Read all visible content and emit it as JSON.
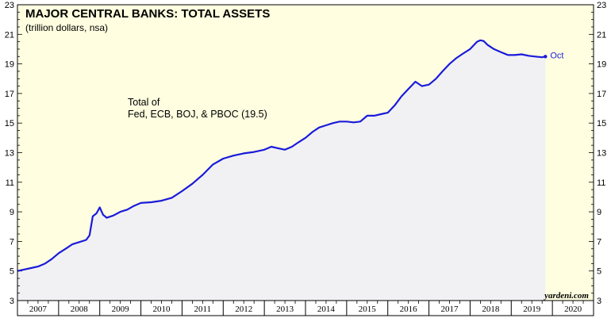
{
  "chart_data": {
    "type": "line",
    "title": "MAJOR CENTRAL BANKS: TOTAL ASSETS",
    "subtitle": "(trillion dollars, nsa)",
    "annotation_lines": [
      "Total of",
      "Fed, ECB, BOJ, & PBOC (19.5)"
    ],
    "end_label": "Oct",
    "credit": "yardeni.com",
    "xlabel": "",
    "ylabel": "",
    "xlim": [
      2007,
      2021
    ],
    "ylim": [
      3,
      23
    ],
    "y_ticks": [
      3,
      5,
      7,
      9,
      11,
      13,
      15,
      17,
      19,
      21,
      23
    ],
    "x_tick_labels": [
      "2007",
      "2008",
      "2009",
      "2010",
      "2011",
      "2012",
      "2013",
      "2014",
      "2015",
      "2016",
      "2017",
      "2018",
      "2019",
      "2020"
    ],
    "x_tick_positions": [
      2007.5,
      2008.5,
      2009.5,
      2010.5,
      2011.5,
      2012.5,
      2013.5,
      2014.5,
      2015.5,
      2016.5,
      2017.5,
      2018.5,
      2019.5,
      2020.5
    ],
    "grid": false,
    "background_color": "#fffee0",
    "fill_color": "#f1f1f4",
    "series": [
      {
        "color": "#1a1adb",
        "points": [
          [
            2007.0,
            5.0
          ],
          [
            2007.17,
            5.1
          ],
          [
            2007.33,
            5.2
          ],
          [
            2007.5,
            5.3
          ],
          [
            2007.67,
            5.5
          ],
          [
            2007.83,
            5.8
          ],
          [
            2008.0,
            6.2
          ],
          [
            2008.17,
            6.5
          ],
          [
            2008.33,
            6.8
          ],
          [
            2008.5,
            6.95
          ],
          [
            2008.67,
            7.1
          ],
          [
            2008.75,
            7.4
          ],
          [
            2008.83,
            8.7
          ],
          [
            2008.92,
            8.9
          ],
          [
            2009.0,
            9.3
          ],
          [
            2009.08,
            8.8
          ],
          [
            2009.17,
            8.6
          ],
          [
            2009.33,
            8.75
          ],
          [
            2009.5,
            9.0
          ],
          [
            2009.67,
            9.15
          ],
          [
            2009.83,
            9.4
          ],
          [
            2010.0,
            9.6
          ],
          [
            2010.25,
            9.65
          ],
          [
            2010.5,
            9.75
          ],
          [
            2010.75,
            9.95
          ],
          [
            2011.0,
            10.4
          ],
          [
            2011.25,
            10.9
          ],
          [
            2011.5,
            11.5
          ],
          [
            2011.75,
            12.2
          ],
          [
            2012.0,
            12.6
          ],
          [
            2012.25,
            12.8
          ],
          [
            2012.5,
            12.95
          ],
          [
            2012.75,
            13.05
          ],
          [
            2013.0,
            13.2
          ],
          [
            2013.17,
            13.4
          ],
          [
            2013.33,
            13.3
          ],
          [
            2013.5,
            13.2
          ],
          [
            2013.67,
            13.4
          ],
          [
            2013.83,
            13.7
          ],
          [
            2014.0,
            14.0
          ],
          [
            2014.17,
            14.4
          ],
          [
            2014.33,
            14.7
          ],
          [
            2014.5,
            14.85
          ],
          [
            2014.67,
            15.0
          ],
          [
            2014.83,
            15.1
          ],
          [
            2015.0,
            15.1
          ],
          [
            2015.17,
            15.05
          ],
          [
            2015.33,
            15.1
          ],
          [
            2015.5,
            15.5
          ],
          [
            2015.67,
            15.5
          ],
          [
            2015.83,
            15.6
          ],
          [
            2016.0,
            15.7
          ],
          [
            2016.17,
            16.2
          ],
          [
            2016.33,
            16.8
          ],
          [
            2016.5,
            17.3
          ],
          [
            2016.67,
            17.8
          ],
          [
            2016.83,
            17.5
          ],
          [
            2017.0,
            17.6
          ],
          [
            2017.17,
            18.0
          ],
          [
            2017.33,
            18.5
          ],
          [
            2017.5,
            19.0
          ],
          [
            2017.67,
            19.4
          ],
          [
            2017.83,
            19.7
          ],
          [
            2018.0,
            20.0
          ],
          [
            2018.17,
            20.5
          ],
          [
            2018.25,
            20.6
          ],
          [
            2018.33,
            20.55
          ],
          [
            2018.42,
            20.3
          ],
          [
            2018.58,
            20.0
          ],
          [
            2018.75,
            19.8
          ],
          [
            2018.92,
            19.6
          ],
          [
            2019.08,
            19.6
          ],
          [
            2019.25,
            19.65
          ],
          [
            2019.42,
            19.55
          ],
          [
            2019.58,
            19.5
          ],
          [
            2019.75,
            19.45
          ],
          [
            2019.83,
            19.5
          ]
        ]
      }
    ]
  }
}
